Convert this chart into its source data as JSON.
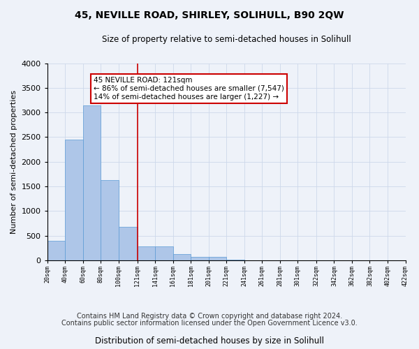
{
  "title1": "45, NEVILLE ROAD, SHIRLEY, SOLIHULL, B90 2QW",
  "title2": "Size of property relative to semi-detached houses in Solihull",
  "xlabel": "Distribution of semi-detached houses by size in Solihull",
  "ylabel": "Number of semi-detached properties",
  "footer1": "Contains HM Land Registry data © Crown copyright and database right 2024.",
  "footer2": "Contains public sector information licensed under the Open Government Licence v3.0.",
  "annotation_title": "45 NEVILLE ROAD: 121sqm",
  "annotation_line1": "← 86% of semi-detached houses are smaller (7,547)",
  "annotation_line2": "14% of semi-detached houses are larger (1,227) →",
  "property_size": 121,
  "bar_lefts": [
    20,
    40,
    60,
    80,
    100,
    121,
    141,
    161,
    181,
    201,
    221,
    241,
    261,
    281,
    301,
    322,
    342,
    362,
    382,
    402
  ],
  "bar_heights": [
    400,
    2450,
    3150,
    1625,
    680,
    280,
    280,
    125,
    75,
    75,
    10,
    5,
    5,
    5,
    5,
    5,
    5,
    5,
    5,
    5
  ],
  "xtick_positions": [
    20,
    40,
    60,
    80,
    100,
    121,
    141,
    161,
    181,
    201,
    221,
    241,
    261,
    281,
    301,
    322,
    342,
    362,
    382,
    402,
    422
  ],
  "xtick_labels": [
    "20sqm",
    "40sqm",
    "60sqm",
    "80sqm",
    "100sqm",
    "121sqm",
    "141sqm",
    "161sqm",
    "181sqm",
    "201sqm",
    "221sqm",
    "241sqm",
    "261sqm",
    "281sqm",
    "301sqm",
    "322sqm",
    "342sqm",
    "362sqm",
    "382sqm",
    "402sqm",
    "422sqm"
  ],
  "ytick_positions": [
    0,
    500,
    1000,
    1500,
    2000,
    2500,
    3000,
    3500,
    4000
  ],
  "bar_color": "#aec6e8",
  "bar_edge_color": "#5b9bd5",
  "vline_color": "#cc0000",
  "annotation_box_color": "#cc0000",
  "grid_color": "#cdd8ea",
  "ylim": [
    0,
    4000
  ],
  "xlim": [
    20,
    422
  ],
  "title1_fontsize": 10,
  "title2_fontsize": 8.5,
  "ylabel_fontsize": 8,
  "footer_fontsize": 7,
  "background_color": "#eef2f9"
}
